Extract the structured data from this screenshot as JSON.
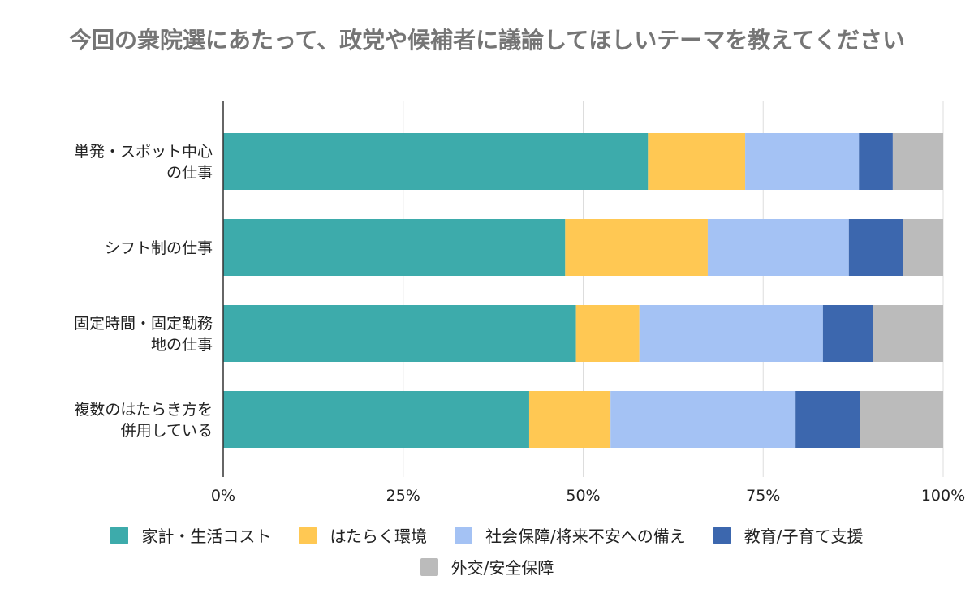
{
  "chart_data": {
    "type": "bar",
    "stacked": "percent",
    "orientation": "horizontal",
    "title": "今回の衆院選にあたって、政党や候補者に議論してほしいテーマを教えてください",
    "categories": [
      [
        "単発・スポット中心",
        "の仕事"
      ],
      [
        "シフト制の仕事"
      ],
      [
        "固定時間・固定勤務",
        "地の仕事"
      ],
      [
        "複数のはたらき方を",
        "併用している"
      ]
    ],
    "series": [
      {
        "name": "家計・生活コスト",
        "color": "#3DABAB",
        "values": [
          59.0,
          47.5,
          49.0,
          42.5
        ]
      },
      {
        "name": "はたらく環境",
        "color": "#FFC853",
        "values": [
          13.5,
          19.8,
          8.8,
          11.3
        ]
      },
      {
        "name": "社会保障/将来不安への備え",
        "color": "#A4C2F4",
        "values": [
          15.8,
          19.6,
          25.5,
          25.7
        ]
      },
      {
        "name": "教育/子育て支援",
        "color": "#3C67AE",
        "values": [
          4.7,
          7.5,
          7.0,
          9.0
        ]
      },
      {
        "name": "外交/安全保障",
        "color": "#BBBBBB",
        "values": [
          7.0,
          5.6,
          9.7,
          11.5
        ]
      }
    ],
    "xlim": [
      0,
      100
    ],
    "xticks": [
      "0%",
      "25%",
      "50%",
      "75%",
      "100%"
    ],
    "grid": true,
    "legend_position": "bottom"
  }
}
